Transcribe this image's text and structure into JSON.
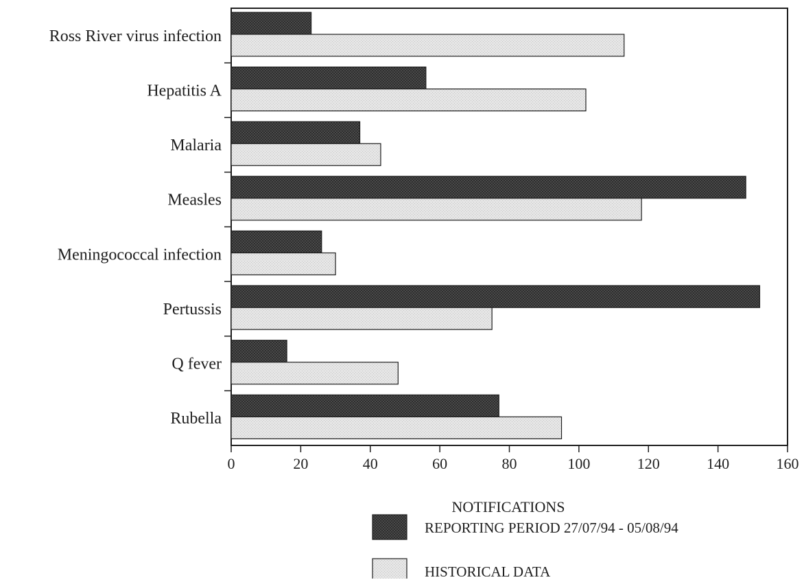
{
  "chart_data": {
    "type": "bar",
    "orientation": "horizontal",
    "categories": [
      "Ross River virus infection",
      "Hepatitis A",
      "Malaria",
      "Measles",
      "Meningococcal infection",
      "Pertussis",
      "Q fever",
      "Rubella"
    ],
    "series": [
      {
        "name": "REPORTING PERIOD 27/07/94 - 05/08/94",
        "values": [
          23,
          56,
          37,
          148,
          26,
          152,
          16,
          77
        ],
        "color": "#3c3c3c"
      },
      {
        "name": "HISTORICAL DATA",
        "values": [
          113,
          102,
          43,
          118,
          30,
          75,
          48,
          95
        ],
        "color": "#dcdcdc"
      }
    ],
    "xlabel": "NOTIFICATIONS",
    "ylabel": "",
    "xlim": [
      0,
      160
    ],
    "xticks": [
      "0",
      "20",
      "40",
      "60",
      "80",
      "100",
      "120",
      "140",
      "160"
    ],
    "grid": false,
    "legend_position": "bottom-right"
  }
}
